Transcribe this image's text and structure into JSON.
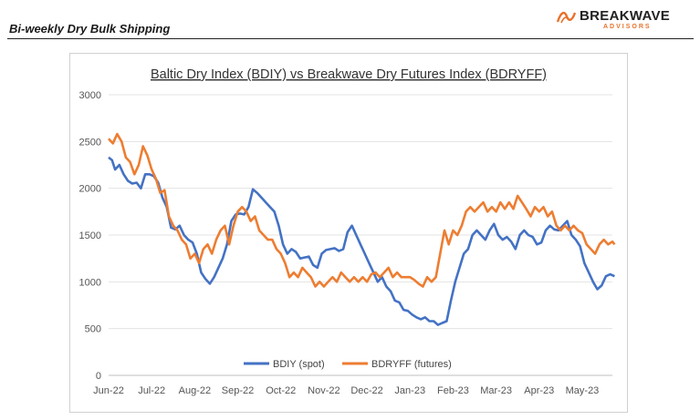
{
  "header": {
    "report_title": "Bi-weekly Dry Bulk Shipping",
    "logo_name": "BREAKWAVE",
    "logo_sub": "ADVISORS",
    "brand_color": "#e8722b"
  },
  "chart_data": {
    "type": "line",
    "title": "Baltic Dry Index (BDIY) vs Breakwave Dry Futures Index (BDRYFF)",
    "xlabel": "",
    "ylabel": "",
    "ylim": [
      0,
      3000
    ],
    "yticks": [
      0,
      500,
      1000,
      1500,
      2000,
      2500,
      3000
    ],
    "grid": true,
    "legend_position": "bottom",
    "x_tick_labels": [
      "Jun-22",
      "Jul-22",
      "Aug-22",
      "Sep-22",
      "Oct-22",
      "Nov-22",
      "Dec-22",
      "Jan-23",
      "Feb-23",
      "Mar-23",
      "Apr-23",
      "May-23"
    ],
    "x_range": [
      0,
      11.7
    ],
    "series": [
      {
        "name": "BDIY (spot)",
        "color": "#4472c4",
        "points": [
          [
            0.0,
            2330
          ],
          [
            0.08,
            2300
          ],
          [
            0.15,
            2200
          ],
          [
            0.25,
            2250
          ],
          [
            0.35,
            2150
          ],
          [
            0.45,
            2080
          ],
          [
            0.55,
            2050
          ],
          [
            0.65,
            2060
          ],
          [
            0.75,
            2000
          ],
          [
            0.85,
            2150
          ],
          [
            0.95,
            2150
          ],
          [
            1.05,
            2130
          ],
          [
            1.15,
            2060
          ],
          [
            1.25,
            1900
          ],
          [
            1.35,
            1800
          ],
          [
            1.45,
            1580
          ],
          [
            1.55,
            1560
          ],
          [
            1.65,
            1600
          ],
          [
            1.75,
            1500
          ],
          [
            1.85,
            1450
          ],
          [
            1.95,
            1420
          ],
          [
            2.05,
            1300
          ],
          [
            2.15,
            1100
          ],
          [
            2.25,
            1030
          ],
          [
            2.35,
            980
          ],
          [
            2.45,
            1050
          ],
          [
            2.55,
            1150
          ],
          [
            2.65,
            1250
          ],
          [
            2.75,
            1400
          ],
          [
            2.85,
            1650
          ],
          [
            2.95,
            1720
          ],
          [
            3.05,
            1730
          ],
          [
            3.15,
            1720
          ],
          [
            3.25,
            1800
          ],
          [
            3.35,
            1990
          ],
          [
            3.45,
            1950
          ],
          [
            3.55,
            1900
          ],
          [
            3.65,
            1850
          ],
          [
            3.75,
            1800
          ],
          [
            3.85,
            1750
          ],
          [
            3.95,
            1600
          ],
          [
            4.05,
            1400
          ],
          [
            4.15,
            1300
          ],
          [
            4.25,
            1350
          ],
          [
            4.35,
            1320
          ],
          [
            4.45,
            1250
          ],
          [
            4.55,
            1260
          ],
          [
            4.65,
            1270
          ],
          [
            4.75,
            1180
          ],
          [
            4.85,
            1150
          ],
          [
            4.95,
            1300
          ],
          [
            5.05,
            1340
          ],
          [
            5.15,
            1350
          ],
          [
            5.25,
            1360
          ],
          [
            5.35,
            1330
          ],
          [
            5.45,
            1350
          ],
          [
            5.55,
            1530
          ],
          [
            5.65,
            1600
          ],
          [
            5.75,
            1500
          ],
          [
            5.85,
            1400
          ],
          [
            5.95,
            1300
          ],
          [
            6.05,
            1200
          ],
          [
            6.15,
            1100
          ],
          [
            6.25,
            1000
          ],
          [
            6.35,
            1050
          ],
          [
            6.45,
            950
          ],
          [
            6.55,
            900
          ],
          [
            6.65,
            800
          ],
          [
            6.75,
            780
          ],
          [
            6.85,
            700
          ],
          [
            6.95,
            690
          ],
          [
            7.05,
            650
          ],
          [
            7.15,
            620
          ],
          [
            7.25,
            600
          ],
          [
            7.35,
            620
          ],
          [
            7.45,
            580
          ],
          [
            7.55,
            580
          ],
          [
            7.65,
            540
          ],
          [
            7.75,
            560
          ],
          [
            7.85,
            580
          ],
          [
            7.95,
            800
          ],
          [
            8.05,
            1000
          ],
          [
            8.15,
            1150
          ],
          [
            8.25,
            1300
          ],
          [
            8.35,
            1350
          ],
          [
            8.45,
            1500
          ],
          [
            8.55,
            1550
          ],
          [
            8.65,
            1500
          ],
          [
            8.75,
            1450
          ],
          [
            8.85,
            1550
          ],
          [
            8.95,
            1620
          ],
          [
            9.05,
            1500
          ],
          [
            9.15,
            1450
          ],
          [
            9.25,
            1480
          ],
          [
            9.35,
            1430
          ],
          [
            9.45,
            1350
          ],
          [
            9.55,
            1500
          ],
          [
            9.65,
            1550
          ],
          [
            9.75,
            1500
          ],
          [
            9.85,
            1480
          ],
          [
            9.95,
            1400
          ],
          [
            10.05,
            1420
          ],
          [
            10.15,
            1550
          ],
          [
            10.25,
            1600
          ],
          [
            10.35,
            1560
          ],
          [
            10.45,
            1550
          ],
          [
            10.55,
            1600
          ],
          [
            10.65,
            1650
          ],
          [
            10.75,
            1500
          ],
          [
            10.85,
            1450
          ],
          [
            10.95,
            1380
          ],
          [
            11.05,
            1200
          ],
          [
            11.15,
            1100
          ],
          [
            11.25,
            1000
          ],
          [
            11.35,
            920
          ],
          [
            11.45,
            960
          ],
          [
            11.55,
            1060
          ],
          [
            11.65,
            1080
          ],
          [
            11.75,
            1060
          ]
        ]
      },
      {
        "name": "BDRYFF (futures)",
        "color": "#ed7d31",
        "points": [
          [
            0.0,
            2530
          ],
          [
            0.1,
            2480
          ],
          [
            0.2,
            2580
          ],
          [
            0.3,
            2500
          ],
          [
            0.4,
            2330
          ],
          [
            0.5,
            2280
          ],
          [
            0.6,
            2150
          ],
          [
            0.7,
            2250
          ],
          [
            0.8,
            2450
          ],
          [
            0.9,
            2350
          ],
          [
            1.0,
            2200
          ],
          [
            1.1,
            2100
          ],
          [
            1.2,
            1950
          ],
          [
            1.3,
            1980
          ],
          [
            1.4,
            1700
          ],
          [
            1.5,
            1600
          ],
          [
            1.6,
            1550
          ],
          [
            1.7,
            1450
          ],
          [
            1.8,
            1400
          ],
          [
            1.9,
            1250
          ],
          [
            2.0,
            1300
          ],
          [
            2.1,
            1200
          ],
          [
            2.2,
            1350
          ],
          [
            2.3,
            1400
          ],
          [
            2.4,
            1300
          ],
          [
            2.5,
            1450
          ],
          [
            2.6,
            1550
          ],
          [
            2.7,
            1600
          ],
          [
            2.8,
            1400
          ],
          [
            2.9,
            1600
          ],
          [
            3.0,
            1750
          ],
          [
            3.1,
            1800
          ],
          [
            3.2,
            1750
          ],
          [
            3.3,
            1650
          ],
          [
            3.4,
            1700
          ],
          [
            3.5,
            1550
          ],
          [
            3.6,
            1500
          ],
          [
            3.7,
            1450
          ],
          [
            3.8,
            1450
          ],
          [
            3.9,
            1350
          ],
          [
            4.0,
            1300
          ],
          [
            4.1,
            1200
          ],
          [
            4.2,
            1050
          ],
          [
            4.3,
            1100
          ],
          [
            4.4,
            1050
          ],
          [
            4.5,
            1150
          ],
          [
            4.6,
            1100
          ],
          [
            4.7,
            1050
          ],
          [
            4.8,
            950
          ],
          [
            4.9,
            1000
          ],
          [
            5.0,
            950
          ],
          [
            5.1,
            1000
          ],
          [
            5.2,
            1050
          ],
          [
            5.3,
            1000
          ],
          [
            5.4,
            1100
          ],
          [
            5.5,
            1050
          ],
          [
            5.6,
            1000
          ],
          [
            5.7,
            1050
          ],
          [
            5.8,
            1000
          ],
          [
            5.9,
            1050
          ],
          [
            6.0,
            1000
          ],
          [
            6.1,
            1080
          ],
          [
            6.2,
            1100
          ],
          [
            6.3,
            1050
          ],
          [
            6.4,
            1100
          ],
          [
            6.5,
            1150
          ],
          [
            6.6,
            1050
          ],
          [
            6.7,
            1100
          ],
          [
            6.8,
            1050
          ],
          [
            6.9,
            1050
          ],
          [
            7.0,
            1050
          ],
          [
            7.1,
            1020
          ],
          [
            7.2,
            980
          ],
          [
            7.3,
            950
          ],
          [
            7.4,
            1050
          ],
          [
            7.5,
            1000
          ],
          [
            7.6,
            1050
          ],
          [
            7.7,
            1300
          ],
          [
            7.8,
            1550
          ],
          [
            7.9,
            1400
          ],
          [
            8.0,
            1550
          ],
          [
            8.1,
            1500
          ],
          [
            8.2,
            1600
          ],
          [
            8.3,
            1750
          ],
          [
            8.4,
            1800
          ],
          [
            8.5,
            1750
          ],
          [
            8.6,
            1800
          ],
          [
            8.7,
            1850
          ],
          [
            8.8,
            1750
          ],
          [
            8.9,
            1800
          ],
          [
            9.0,
            1750
          ],
          [
            9.1,
            1850
          ],
          [
            9.2,
            1780
          ],
          [
            9.3,
            1850
          ],
          [
            9.4,
            1780
          ],
          [
            9.5,
            1920
          ],
          [
            9.6,
            1850
          ],
          [
            9.7,
            1780
          ],
          [
            9.8,
            1700
          ],
          [
            9.9,
            1800
          ],
          [
            10.0,
            1750
          ],
          [
            10.1,
            1800
          ],
          [
            10.2,
            1700
          ],
          [
            10.3,
            1750
          ],
          [
            10.4,
            1600
          ],
          [
            10.5,
            1550
          ],
          [
            10.6,
            1600
          ],
          [
            10.7,
            1550
          ],
          [
            10.8,
            1600
          ],
          [
            10.9,
            1550
          ],
          [
            11.0,
            1520
          ],
          [
            11.1,
            1400
          ],
          [
            11.2,
            1350
          ],
          [
            11.3,
            1300
          ],
          [
            11.4,
            1400
          ],
          [
            11.5,
            1450
          ],
          [
            11.6,
            1400
          ],
          [
            11.7,
            1430
          ],
          [
            11.75,
            1400
          ]
        ]
      }
    ]
  }
}
